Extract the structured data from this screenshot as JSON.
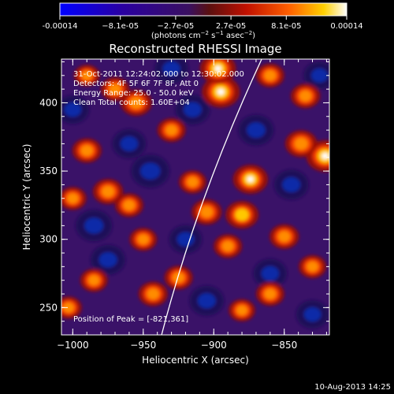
{
  "chart_data": {
    "type": "heatmap",
    "title": "Reconstructed RHESSI Image",
    "xlabel": "Heliocentric X (arcsec)",
    "ylabel": "Heliocentric Y (arcsec)",
    "xlim": [
      -1008,
      -818
    ],
    "ylim": [
      230,
      432
    ],
    "x_ticks": [
      -1000,
      -950,
      -900,
      -850
    ],
    "y_ticks": [
      250,
      300,
      350,
      400
    ],
    "colorbar": {
      "range": [
        -0.00014,
        0.00014
      ],
      "tick_values": [
        -0.00014,
        -8.1e-05,
        -2.7e-05,
        2.7e-05,
        8.1e-05,
        0.00014
      ],
      "tick_labels": [
        "-0.00014",
        "−8.1e-05",
        "−2.7e-05",
        "2.7e-05",
        "8.1e-05",
        "0.00014"
      ],
      "label_base": "(photons cm",
      "label_mid": " s",
      "label_mid2": " asec",
      "label_end": ")",
      "sup": "−2"
    },
    "annotations": [
      "31-Oct-2011 12:24:02.000 to 12:30:02.000",
      "Detectors: 4F 5F 6F 7F 8F, Att 0",
      "Energy Range: 25.0 - 50.0 keV",
      "Clean    Total counts: 1.60E+04"
    ],
    "peak_label": "Position of Peak = [-821,361]",
    "peak": [
      -821,
      361
    ],
    "limb_x_at_bottom": -937,
    "limb_x_at_top": -866,
    "sources": [
      {
        "x": -895,
        "y": 408,
        "v": 1.0
      },
      {
        "x": -897,
        "y": 425,
        "v": 0.9
      },
      {
        "x": -835,
        "y": 405,
        "v": 0.55
      },
      {
        "x": -821,
        "y": 361,
        "v": 1.0
      },
      {
        "x": -838,
        "y": 370,
        "v": 0.7
      },
      {
        "x": -874,
        "y": 344,
        "v": 0.85
      },
      {
        "x": -880,
        "y": 318,
        "v": 0.75
      },
      {
        "x": -905,
        "y": 320,
        "v": 0.6
      },
      {
        "x": -915,
        "y": 342,
        "v": 0.45
      },
      {
        "x": -890,
        "y": 295,
        "v": 0.5
      },
      {
        "x": -955,
        "y": 400,
        "v": 0.65
      },
      {
        "x": -970,
        "y": 410,
        "v": 0.5
      },
      {
        "x": -990,
        "y": 365,
        "v": 0.55
      },
      {
        "x": -975,
        "y": 335,
        "v": 0.6
      },
      {
        "x": -960,
        "y": 325,
        "v": 0.5
      },
      {
        "x": -1000,
        "y": 330,
        "v": 0.45
      },
      {
        "x": -930,
        "y": 380,
        "v": 0.5
      },
      {
        "x": -943,
        "y": 260,
        "v": 0.55
      },
      {
        "x": -925,
        "y": 272,
        "v": 0.5
      },
      {
        "x": -950,
        "y": 300,
        "v": 0.45
      },
      {
        "x": -880,
        "y": 248,
        "v": 0.4
      },
      {
        "x": -860,
        "y": 260,
        "v": 0.5
      },
      {
        "x": -850,
        "y": 302,
        "v": 0.55
      },
      {
        "x": -830,
        "y": 280,
        "v": 0.45
      },
      {
        "x": -985,
        "y": 270,
        "v": 0.45
      },
      {
        "x": -1003,
        "y": 250,
        "v": 0.4
      },
      {
        "x": -990,
        "y": 420,
        "v": 0.35
      },
      {
        "x": -860,
        "y": 420,
        "v": 0.5
      }
    ],
    "sinks": [
      {
        "x": -945,
        "y": 350,
        "v": 0.8
      },
      {
        "x": -985,
        "y": 310,
        "v": 0.7
      },
      {
        "x": -975,
        "y": 285,
        "v": 0.6
      },
      {
        "x": -915,
        "y": 395,
        "v": 0.6
      },
      {
        "x": -930,
        "y": 425,
        "v": 0.55
      },
      {
        "x": -960,
        "y": 370,
        "v": 0.55
      },
      {
        "x": -870,
        "y": 380,
        "v": 0.65
      },
      {
        "x": -845,
        "y": 340,
        "v": 0.6
      },
      {
        "x": -860,
        "y": 275,
        "v": 0.55
      },
      {
        "x": -905,
        "y": 255,
        "v": 0.6
      },
      {
        "x": -920,
        "y": 300,
        "v": 0.5
      },
      {
        "x": -1000,
        "y": 395,
        "v": 0.5
      },
      {
        "x": -825,
        "y": 420,
        "v": 0.45
      },
      {
        "x": -830,
        "y": 245,
        "v": 0.5
      }
    ]
  },
  "footer": {
    "timestamp": "10-Aug-2013 14:25"
  }
}
